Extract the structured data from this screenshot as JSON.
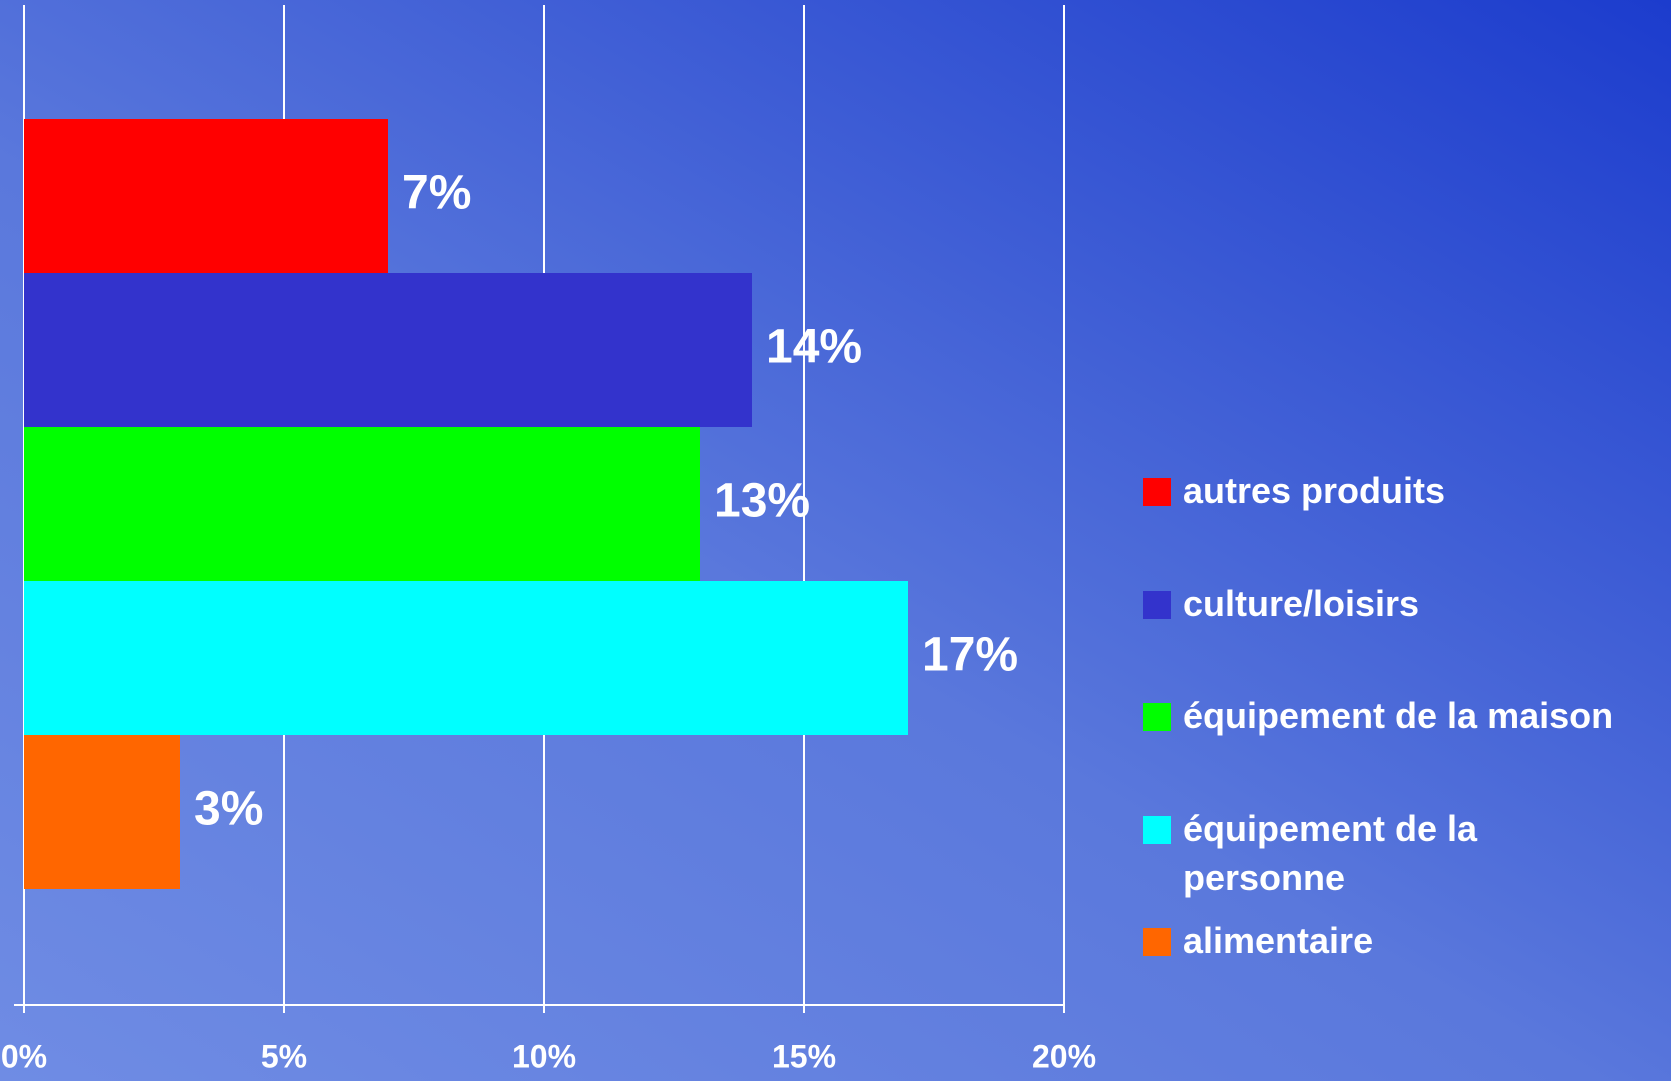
{
  "chart_data": {
    "type": "bar",
    "orientation": "horizontal",
    "series": [
      {
        "name": "autres produits",
        "color": "#ff0000",
        "values": [
          7
        ],
        "value_labels": [
          "7%"
        ]
      },
      {
        "name": "culture/loisirs",
        "color": "#3333cc",
        "values": [
          14
        ],
        "value_labels": [
          "14%"
        ]
      },
      {
        "name": "équipement de la maison",
        "color": "#00ff00",
        "values": [
          13
        ],
        "value_labels": [
          "13%"
        ]
      },
      {
        "name": "équipement de la personne",
        "color": "#00ffff",
        "values": [
          17
        ],
        "value_labels": [
          "17%"
        ]
      },
      {
        "name": "alimentaire",
        "color": "#ff6600",
        "values": [
          3
        ],
        "value_labels": [
          "3%"
        ]
      }
    ],
    "xlim": [
      0,
      20
    ],
    "xticks": [
      {
        "value": 0,
        "label": "0%"
      },
      {
        "value": 5,
        "label": "5%"
      },
      {
        "value": 10,
        "label": "10%"
      },
      {
        "value": 15,
        "label": "15%"
      },
      {
        "value": 20,
        "label": "20%"
      }
    ],
    "grid": true,
    "legend": "right"
  }
}
